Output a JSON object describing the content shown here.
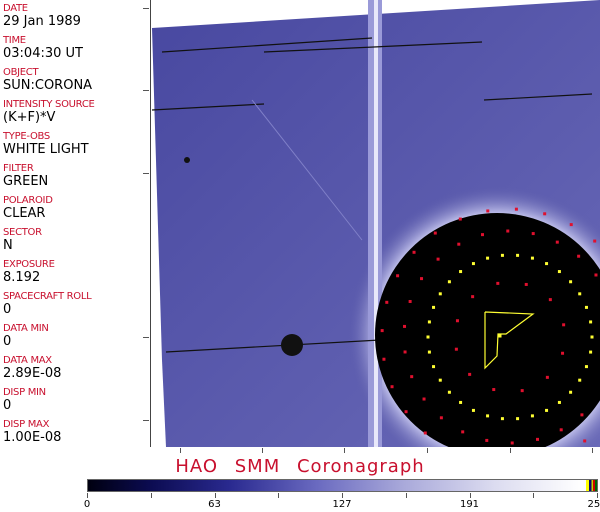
{
  "header_fields": [
    {
      "label": "DATE",
      "value": "29 Jan 1989"
    },
    {
      "label": "TIME",
      "value": "03:04:30 UT"
    },
    {
      "label": "OBJECT",
      "value": "SUN:CORONA"
    },
    {
      "label": "INTENSITY SOURCE",
      "value": "(K+F)*V"
    },
    {
      "label": "TYPE-OBS",
      "value": "WHITE LIGHT"
    },
    {
      "label": "FILTER",
      "value": "GREEN"
    },
    {
      "label": "POLAROID",
      "value": "CLEAR"
    },
    {
      "label": "SECTOR",
      "value": "N"
    },
    {
      "label": "EXPOSURE",
      "value": "8.192"
    },
    {
      "label": "SPACECRAFT ROLL",
      "value": "0"
    },
    {
      "label": "DATA MIN",
      "value": "0"
    },
    {
      "label": "DATA MAX",
      "value": "2.89E-08"
    },
    {
      "label": "DISP MIN",
      "value": "0"
    },
    {
      "label": "DISP MAX",
      "value": "1.00E-08"
    }
  ],
  "title": "HAO SMM Coronagraph",
  "colorbar": {
    "min": 0,
    "max": 255,
    "ticks": [
      "0",
      "63",
      "127",
      "191",
      "255"
    ],
    "colors": {
      "low": "#000010",
      "mid": "#6a6ac0",
      "high": "#ffffff"
    }
  },
  "colors": {
    "label": "#c8102e",
    "image_bg": "#5858a8",
    "overlay_yellow": "#ffff33",
    "overlay_red": "#e0102e"
  }
}
